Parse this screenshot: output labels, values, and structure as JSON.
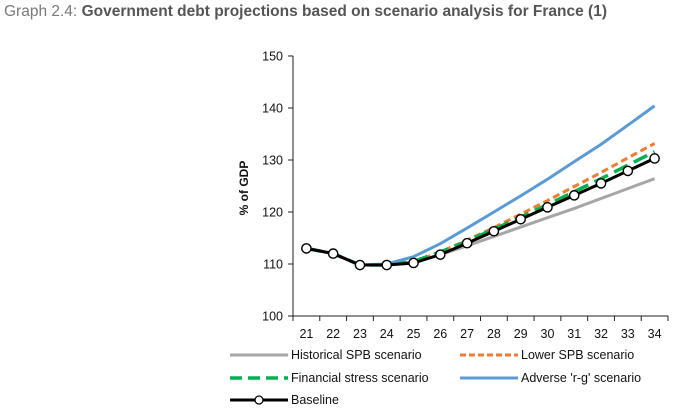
{
  "header": {
    "graph_number": "Graph 2.4:",
    "title": "Government debt projections based on scenario analysis for France (1)"
  },
  "chart_data": {
    "type": "line",
    "title": "Government debt projections based on scenario analysis for France (1)",
    "xlabel": "",
    "ylabel": "% of GDP",
    "ylim": [
      100,
      150
    ],
    "yticks": [
      "100",
      "110",
      "120",
      "130",
      "140",
      "150"
    ],
    "categories": [
      "21",
      "22",
      "23",
      "24",
      "25",
      "26",
      "27",
      "28",
      "29",
      "30",
      "31",
      "32",
      "33",
      "34"
    ],
    "series": [
      {
        "name": "Historical SPB scenario",
        "color": "#a6a6a6",
        "style": "solid",
        "values": [
          113,
          112,
          109.8,
          109.8,
          110.2,
          111.8,
          113.5,
          115.3,
          117.1,
          118.9,
          120.7,
          122.6,
          124.5,
          126.4
        ]
      },
      {
        "name": "Lower SPB scenario",
        "color": "#ed7d31",
        "style": "dash-short",
        "values": [
          113,
          112,
          109.8,
          109.8,
          110.4,
          112.3,
          114.6,
          117.0,
          119.6,
          122.2,
          124.9,
          127.6,
          130.4,
          133.2
        ]
      },
      {
        "name": "Financial stress scenario",
        "color": "#00b050",
        "style": "dash-long",
        "values": [
          113,
          112,
          109.8,
          109.8,
          110.5,
          112.3,
          114.4,
          116.7,
          119.0,
          121.4,
          123.9,
          126.4,
          129.0,
          131.6
        ]
      },
      {
        "name": "Adverse 'r-g' scenario",
        "color": "#5b9bd5",
        "style": "solid",
        "values": [
          113,
          112,
          109.8,
          110.0,
          111.4,
          113.9,
          116.9,
          120.0,
          123.1,
          126.3,
          129.7,
          133.0,
          136.7,
          140.4
        ]
      },
      {
        "name": "Baseline",
        "color": "#000000",
        "style": "solid-markers",
        "values": [
          113,
          112,
          109.8,
          109.8,
          110.2,
          111.8,
          114.0,
          116.3,
          118.6,
          120.9,
          123.2,
          125.5,
          127.9,
          130.3
        ]
      }
    ],
    "legend_position": "bottom"
  }
}
